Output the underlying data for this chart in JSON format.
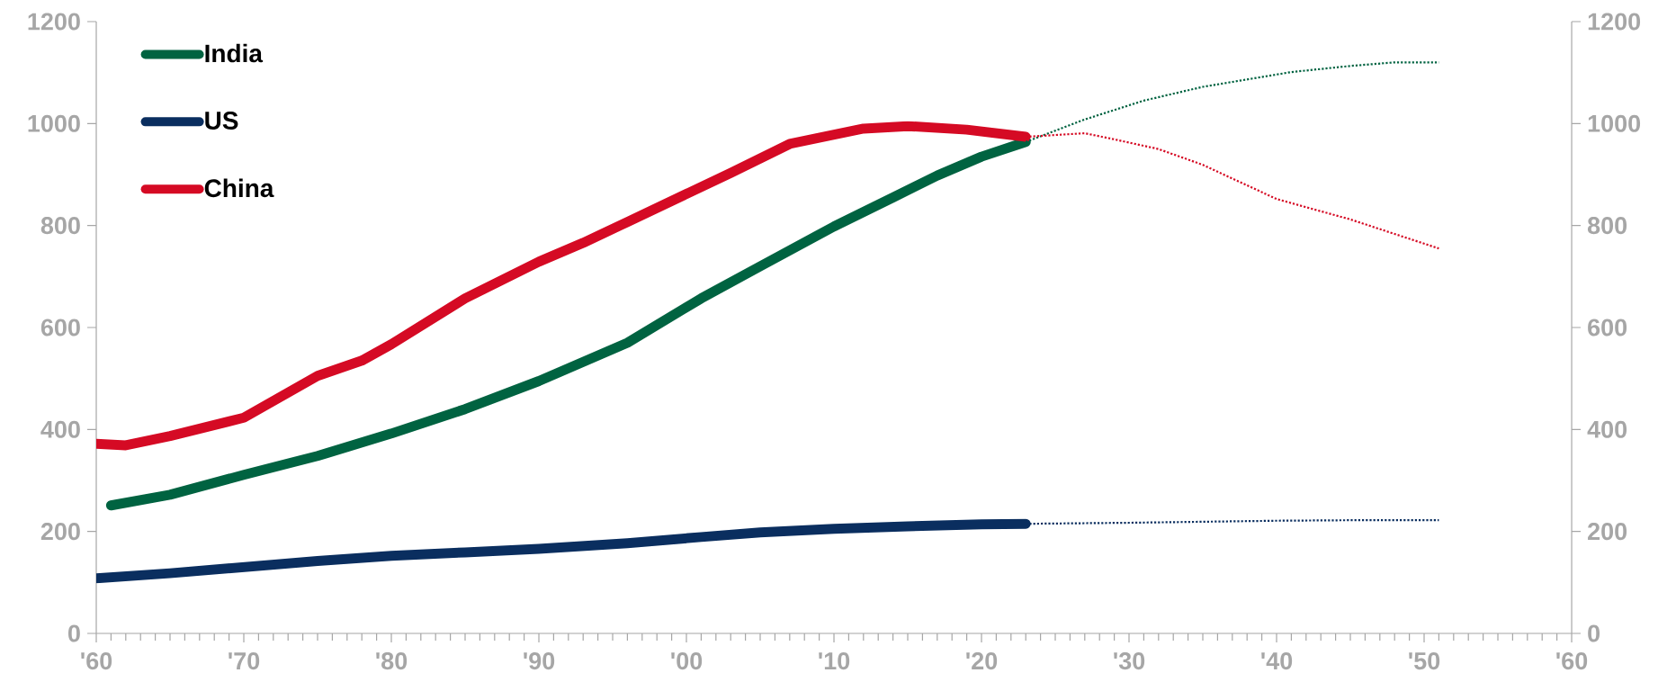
{
  "chart_data": {
    "type": "line",
    "xlim": [
      1960,
      2060
    ],
    "xticks": [
      {
        "value": 1960,
        "label": "'60"
      },
      {
        "value": 1970,
        "label": "'70"
      },
      {
        "value": 1980,
        "label": "'80"
      },
      {
        "value": 1990,
        "label": "'90"
      },
      {
        "value": 2000,
        "label": "'00"
      },
      {
        "value": 2010,
        "label": "'10"
      },
      {
        "value": 2020,
        "label": "'20"
      },
      {
        "value": 2030,
        "label": "'30"
      },
      {
        "value": 2040,
        "label": "'40"
      },
      {
        "value": 2050,
        "label": "'50"
      },
      {
        "value": 2060,
        "label": "'60"
      }
    ],
    "ylim": [
      0,
      1200
    ],
    "yticks": [
      0,
      200,
      400,
      600,
      800,
      1000,
      1200
    ],
    "y2lim": [
      0,
      1200
    ],
    "y2ticks": [
      0,
      200,
      400,
      600,
      800,
      1000,
      1200
    ],
    "grid": false,
    "legend": "top left",
    "marker": "none",
    "series": [
      {
        "name": "India",
        "color": "#006341",
        "line_style": "solid",
        "x": [
          1961,
          1965,
          1970,
          1975,
          1980,
          1985,
          1990,
          1996,
          2001,
          2005,
          2010,
          2014,
          2017,
          2020,
          2023
        ],
        "values": [
          251,
          272,
          311,
          348,
          392,
          440,
          495,
          570,
          657,
          720,
          798,
          855,
          898,
          935,
          964
        ]
      },
      {
        "name": "US",
        "color": "#0a2e5f",
        "line_style": "solid",
        "x": [
          1960,
          1965,
          1970,
          1975,
          1980,
          1985,
          1990,
          1996,
          2001,
          2005,
          2010,
          2015,
          2020,
          2023
        ],
        "values": [
          108,
          118,
          130,
          142,
          152,
          159,
          166,
          177,
          189,
          198,
          205,
          210,
          214,
          215
        ]
      },
      {
        "name": "China",
        "color": "#d50a24",
        "line_style": "solid",
        "x": [
          1960,
          1962,
          1965,
          1970,
          1975,
          1978,
          1980,
          1985,
          1990,
          1993,
          1996,
          2000,
          2003,
          2007,
          2012,
          2015,
          2019,
          2023
        ],
        "values": [
          372,
          369,
          387,
          423,
          505,
          535,
          567,
          657,
          729,
          766,
          807,
          862,
          903,
          960,
          990,
          995,
          988,
          974
        ]
      },
      {
        "color": "#006341",
        "line_style": "dotted",
        "x": [
          2023,
          2027,
          2031,
          2035,
          2041,
          2045,
          2048,
          2051
        ],
        "values": [
          964,
          1008,
          1045,
          1072,
          1101,
          1113,
          1120,
          1120
        ]
      },
      {
        "color": "#0a2e5f",
        "line_style": "dotted",
        "x": [
          2023,
          2030,
          2035,
          2040,
          2045,
          2051
        ],
        "values": [
          215,
          217,
          219,
          221,
          222,
          222
        ]
      },
      {
        "color": "#d50a24",
        "line_style": "dotted",
        "x": [
          2023,
          2027,
          2029,
          2032,
          2035,
          2040,
          2045,
          2051
        ],
        "values": [
          974,
          981,
          969,
          950,
          919,
          852,
          812,
          755
        ]
      }
    ]
  }
}
